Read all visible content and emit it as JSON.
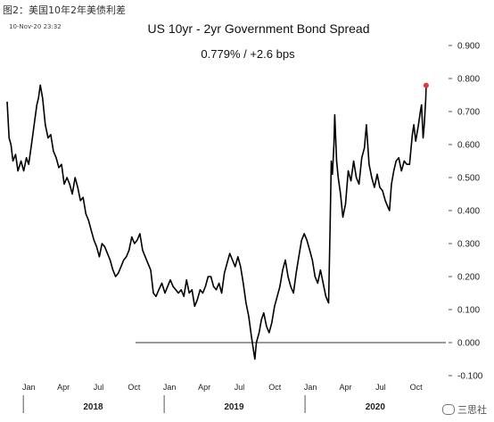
{
  "caption": "图2：美国10年2年美债利差",
  "timestamp": "10-Nov-20 23:32",
  "watermark": "三思社",
  "chart_data": {
    "type": "line",
    "title": "US 10yr - 2yr Government Bond Spread",
    "subtitle": "0.779%  /  +2.6 bps",
    "x_ticks": [
      "Jan",
      "Apr",
      "Jul",
      "Oct",
      "Jan",
      "Apr",
      "Jul",
      "Oct",
      "Jan",
      "Apr",
      "Jul",
      "Oct"
    ],
    "years": [
      "2018",
      "2019",
      "2020"
    ],
    "y_ticks": [
      "0.900",
      "0.800",
      "0.700",
      "0.600",
      "0.500",
      "0.400",
      "0.300",
      "0.200",
      "0.100",
      "0.000",
      "-0.100"
    ],
    "ylim": [
      -0.1,
      0.9
    ],
    "xlim": [
      "2017-11-20",
      "2020-12-31"
    ],
    "reference_line": 0.0,
    "last_point_color": "#e8343a",
    "series": [
      {
        "values": [
          [
            "2017-11-20",
            0.73
          ],
          [
            "2017-11-25",
            0.62
          ],
          [
            "2017-11-30",
            0.6
          ],
          [
            "2017-12-05",
            0.55
          ],
          [
            "2017-12-12",
            0.57
          ],
          [
            "2017-12-18",
            0.52
          ],
          [
            "2017-12-26",
            0.55
          ],
          [
            "2018-01-02",
            0.52
          ],
          [
            "2018-01-09",
            0.56
          ],
          [
            "2018-01-15",
            0.54
          ],
          [
            "2018-01-22",
            0.6
          ],
          [
            "2018-01-29",
            0.66
          ],
          [
            "2018-02-05",
            0.72
          ],
          [
            "2018-02-09",
            0.74
          ],
          [
            "2018-02-14",
            0.78
          ],
          [
            "2018-02-20",
            0.74
          ],
          [
            "2018-02-27",
            0.66
          ],
          [
            "2018-03-06",
            0.62
          ],
          [
            "2018-03-13",
            0.63
          ],
          [
            "2018-03-20",
            0.58
          ],
          [
            "2018-03-27",
            0.56
          ],
          [
            "2018-04-03",
            0.53
          ],
          [
            "2018-04-10",
            0.54
          ],
          [
            "2018-04-17",
            0.48
          ],
          [
            "2018-04-24",
            0.5
          ],
          [
            "2018-05-01",
            0.48
          ],
          [
            "2018-05-08",
            0.45
          ],
          [
            "2018-05-15",
            0.5
          ],
          [
            "2018-05-22",
            0.47
          ],
          [
            "2018-05-29",
            0.43
          ],
          [
            "2018-06-05",
            0.44
          ],
          [
            "2018-06-12",
            0.39
          ],
          [
            "2018-06-19",
            0.37
          ],
          [
            "2018-06-26",
            0.34
          ],
          [
            "2018-07-03",
            0.31
          ],
          [
            "2018-07-10",
            0.29
          ],
          [
            "2018-07-17",
            0.26
          ],
          [
            "2018-07-24",
            0.3
          ],
          [
            "2018-07-31",
            0.29
          ],
          [
            "2018-08-07",
            0.27
          ],
          [
            "2018-08-14",
            0.25
          ],
          [
            "2018-08-21",
            0.22
          ],
          [
            "2018-08-28",
            0.2
          ],
          [
            "2018-09-04",
            0.21
          ],
          [
            "2018-09-11",
            0.23
          ],
          [
            "2018-09-18",
            0.25
          ],
          [
            "2018-09-25",
            0.26
          ],
          [
            "2018-10-02",
            0.28
          ],
          [
            "2018-10-09",
            0.32
          ],
          [
            "2018-10-16",
            0.3
          ],
          [
            "2018-10-23",
            0.31
          ],
          [
            "2018-10-30",
            0.33
          ],
          [
            "2018-11-06",
            0.28
          ],
          [
            "2018-11-13",
            0.26
          ],
          [
            "2018-11-20",
            0.24
          ],
          [
            "2018-11-27",
            0.22
          ],
          [
            "2018-12-04",
            0.15
          ],
          [
            "2018-12-11",
            0.14
          ],
          [
            "2018-12-18",
            0.16
          ],
          [
            "2018-12-26",
            0.18
          ],
          [
            "2019-01-03",
            0.15
          ],
          [
            "2019-01-10",
            0.17
          ],
          [
            "2019-01-17",
            0.19
          ],
          [
            "2019-01-24",
            0.17
          ],
          [
            "2019-01-31",
            0.16
          ],
          [
            "2019-02-07",
            0.15
          ],
          [
            "2019-02-14",
            0.16
          ],
          [
            "2019-02-21",
            0.14
          ],
          [
            "2019-02-28",
            0.19
          ],
          [
            "2019-03-07",
            0.15
          ],
          [
            "2019-03-14",
            0.16
          ],
          [
            "2019-03-21",
            0.11
          ],
          [
            "2019-03-28",
            0.13
          ],
          [
            "2019-04-04",
            0.16
          ],
          [
            "2019-04-11",
            0.15
          ],
          [
            "2019-04-18",
            0.17
          ],
          [
            "2019-04-25",
            0.2
          ],
          [
            "2019-05-02",
            0.2
          ],
          [
            "2019-05-09",
            0.17
          ],
          [
            "2019-05-16",
            0.16
          ],
          [
            "2019-05-23",
            0.18
          ],
          [
            "2019-05-30",
            0.15
          ],
          [
            "2019-06-06",
            0.21
          ],
          [
            "2019-06-13",
            0.24
          ],
          [
            "2019-06-20",
            0.27
          ],
          [
            "2019-06-27",
            0.25
          ],
          [
            "2019-07-04",
            0.23
          ],
          [
            "2019-07-11",
            0.26
          ],
          [
            "2019-07-18",
            0.23
          ],
          [
            "2019-07-25",
            0.18
          ],
          [
            "2019-08-01",
            0.12
          ],
          [
            "2019-08-08",
            0.08
          ],
          [
            "2019-08-15",
            0.02
          ],
          [
            "2019-08-20",
            -0.02
          ],
          [
            "2019-08-24",
            -0.05
          ],
          [
            "2019-08-28",
            0.0
          ],
          [
            "2019-09-04",
            0.03
          ],
          [
            "2019-09-10",
            0.07
          ],
          [
            "2019-09-16",
            0.09
          ],
          [
            "2019-09-23",
            0.05
          ],
          [
            "2019-09-30",
            0.03
          ],
          [
            "2019-10-07",
            0.06
          ],
          [
            "2019-10-14",
            0.11
          ],
          [
            "2019-10-21",
            0.14
          ],
          [
            "2019-10-28",
            0.17
          ],
          [
            "2019-11-04",
            0.22
          ],
          [
            "2019-11-11",
            0.25
          ],
          [
            "2019-11-18",
            0.2
          ],
          [
            "2019-11-25",
            0.17
          ],
          [
            "2019-12-02",
            0.15
          ],
          [
            "2019-12-09",
            0.21
          ],
          [
            "2019-12-16",
            0.26
          ],
          [
            "2019-12-23",
            0.31
          ],
          [
            "2019-12-30",
            0.33
          ],
          [
            "2020-01-06",
            0.31
          ],
          [
            "2020-01-13",
            0.28
          ],
          [
            "2020-01-20",
            0.25
          ],
          [
            "2020-01-27",
            0.2
          ],
          [
            "2020-02-03",
            0.18
          ],
          [
            "2020-02-10",
            0.22
          ],
          [
            "2020-02-17",
            0.18
          ],
          [
            "2020-02-24",
            0.14
          ],
          [
            "2020-03-02",
            0.12
          ],
          [
            "2020-03-06",
            0.35
          ],
          [
            "2020-03-09",
            0.55
          ],
          [
            "2020-03-12",
            0.51
          ],
          [
            "2020-03-16",
            0.6
          ],
          [
            "2020-03-18",
            0.69
          ],
          [
            "2020-03-23",
            0.55
          ],
          [
            "2020-03-27",
            0.5
          ],
          [
            "2020-04-02",
            0.45
          ],
          [
            "2020-04-08",
            0.38
          ],
          [
            "2020-04-15",
            0.42
          ],
          [
            "2020-04-22",
            0.52
          ],
          [
            "2020-04-29",
            0.49
          ],
          [
            "2020-05-06",
            0.55
          ],
          [
            "2020-05-13",
            0.5
          ],
          [
            "2020-05-20",
            0.48
          ],
          [
            "2020-05-27",
            0.56
          ],
          [
            "2020-06-03",
            0.59
          ],
          [
            "2020-06-08",
            0.66
          ],
          [
            "2020-06-15",
            0.54
          ],
          [
            "2020-06-22",
            0.5
          ],
          [
            "2020-06-29",
            0.47
          ],
          [
            "2020-07-06",
            0.51
          ],
          [
            "2020-07-13",
            0.47
          ],
          [
            "2020-07-20",
            0.46
          ],
          [
            "2020-07-27",
            0.43
          ],
          [
            "2020-08-03",
            0.41
          ],
          [
            "2020-08-07",
            0.4
          ],
          [
            "2020-08-12",
            0.48
          ],
          [
            "2020-08-18",
            0.52
          ],
          [
            "2020-08-24",
            0.55
          ],
          [
            "2020-08-31",
            0.56
          ],
          [
            "2020-09-07",
            0.52
          ],
          [
            "2020-09-14",
            0.55
          ],
          [
            "2020-09-21",
            0.54
          ],
          [
            "2020-09-28",
            0.54
          ],
          [
            "2020-10-05",
            0.63
          ],
          [
            "2020-10-09",
            0.66
          ],
          [
            "2020-10-14",
            0.61
          ],
          [
            "2020-10-21",
            0.66
          ],
          [
            "2020-10-26",
            0.7
          ],
          [
            "2020-10-29",
            0.72
          ],
          [
            "2020-11-02",
            0.62
          ],
          [
            "2020-11-05",
            0.66
          ],
          [
            "2020-11-09",
            0.74
          ],
          [
            "2020-11-10",
            0.779
          ]
        ]
      }
    ]
  }
}
